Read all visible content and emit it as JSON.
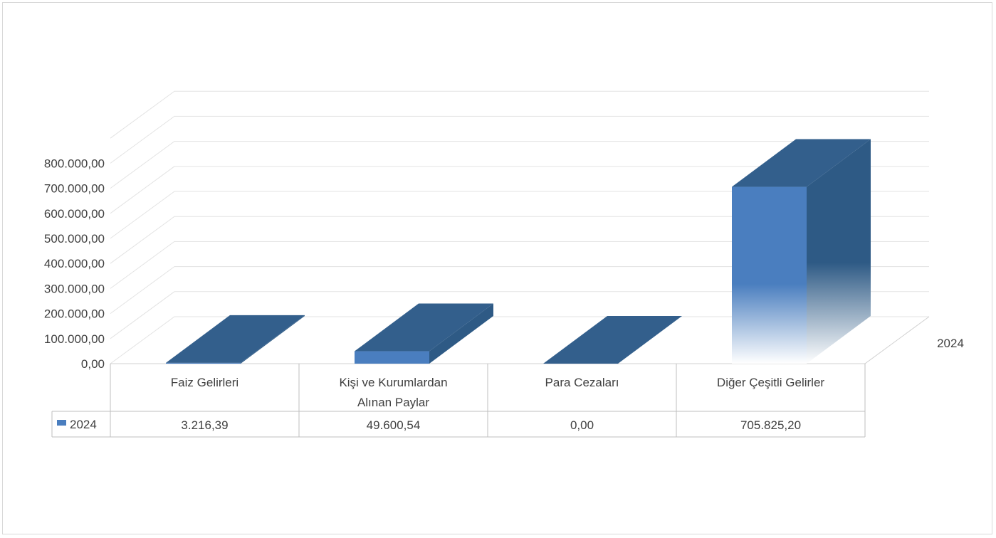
{
  "chart_data": {
    "type": "bar",
    "title": "",
    "xlabel": "",
    "ylabel": "",
    "categories": [
      "Faiz Gelirleri",
      "Kişi ve Kurumlardan Alınan Paylar",
      "Para Cezaları",
      "Diğer Çeşitli Gelirler"
    ],
    "category_lines": [
      [
        "Faiz Gelirleri"
      ],
      [
        "Kişi ve Kurumlardan",
        "Alınan Paylar"
      ],
      [
        "Para Cezaları"
      ],
      [
        "Diğer Çeşitli Gelirler"
      ]
    ],
    "series": [
      {
        "name": "2024",
        "values": [
          3216.39,
          49600.54,
          0.0,
          705825.2
        ],
        "value_labels": [
          "3.216,39",
          "49.600,54",
          "0,00",
          "705.825,20"
        ],
        "color": "#4a7ebf",
        "top_color": "#335f8c",
        "side_color": "#2e5a85"
      }
    ],
    "depth_axis_label": "2024",
    "yticks": [
      0,
      100000,
      200000,
      300000,
      400000,
      500000,
      600000,
      700000,
      800000
    ],
    "ytick_labels": [
      "0,00",
      "100.000,00",
      "200.000,00",
      "300.000,00",
      "400.000,00",
      "500.000,00",
      "600.000,00",
      "700.000,00",
      "800.000,00"
    ],
    "ylim": [
      0,
      800000
    ],
    "grid": true,
    "legend": "data-table",
    "style": "3d-column-with-data-table"
  }
}
